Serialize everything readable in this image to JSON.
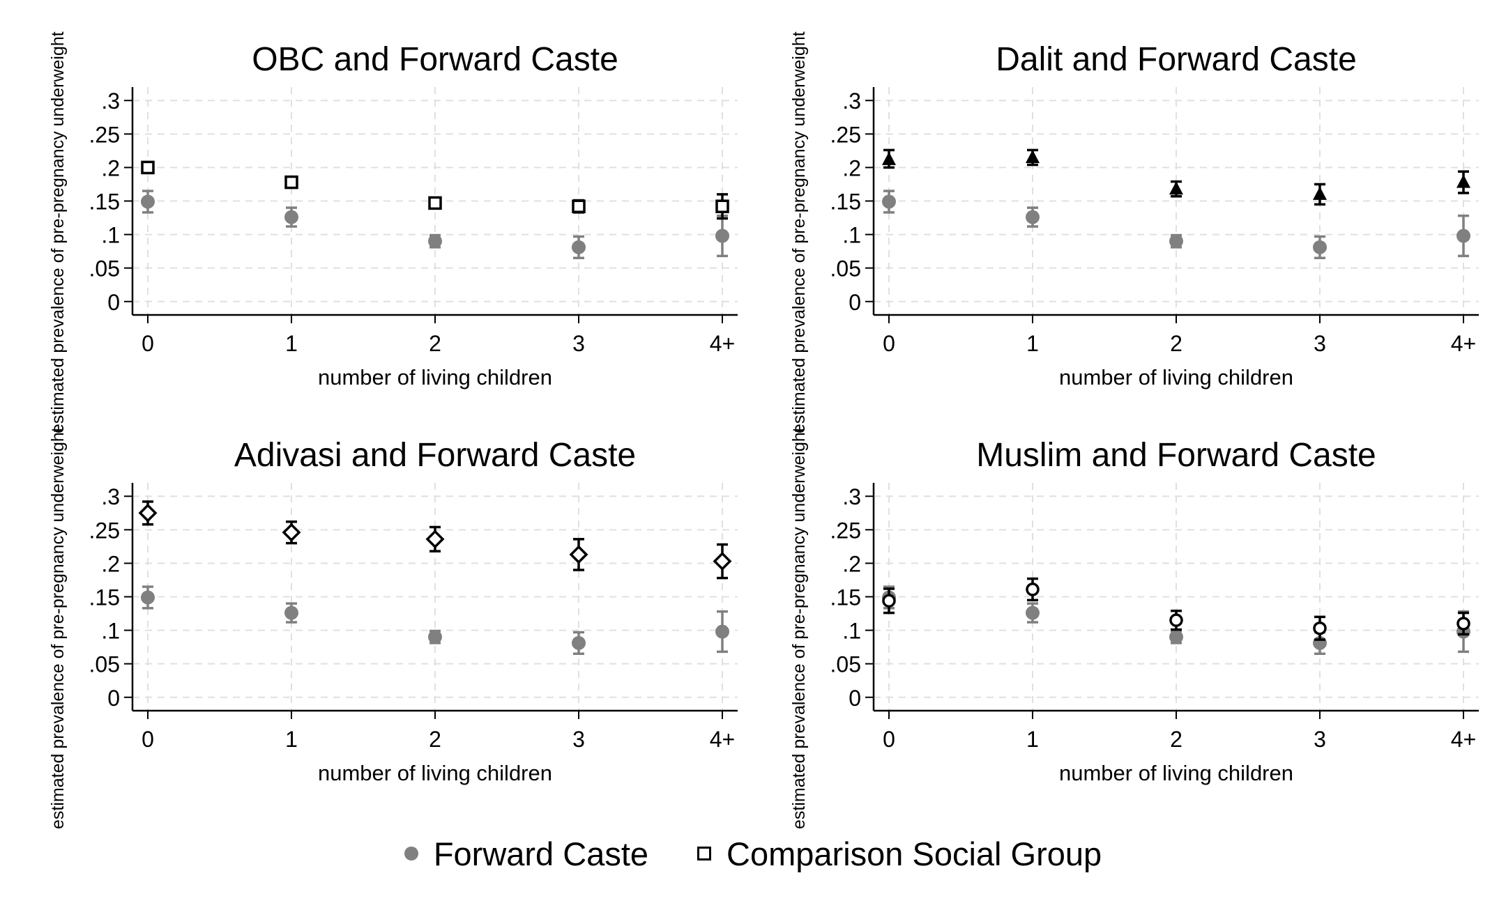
{
  "colors": {
    "forward": "#808080",
    "comparison": "#000000"
  },
  "legend": {
    "items": [
      "Forward Caste",
      "Comparison Social Group"
    ]
  },
  "chart_data": [
    {
      "type": "scatter",
      "title": "OBC and Forward Caste",
      "xlabel": "number of living children",
      "ylabel": "estimated prevalence of pre-pregnancy underweight",
      "categories": [
        "0",
        "1",
        "2",
        "3",
        "4+"
      ],
      "yticks": [
        ".3",
        ".25",
        ".2",
        ".15",
        ".1",
        ".05",
        "0"
      ],
      "ylim": [
        -0.02,
        0.32
      ],
      "grid": true,
      "marker": "square",
      "series": [
        {
          "name": "Forward Caste",
          "values": [
            0.149,
            0.126,
            0.09,
            0.081,
            0.098
          ],
          "lo": [
            0.133,
            0.112,
            0.081,
            0.065,
            0.068
          ],
          "hi": [
            0.165,
            0.14,
            0.099,
            0.097,
            0.128
          ]
        },
        {
          "name": "Comparison Social Group",
          "values": [
            0.2,
            0.178,
            0.147,
            0.142,
            0.142
          ],
          "lo": [
            0.192,
            0.171,
            0.141,
            0.133,
            0.124
          ],
          "hi": [
            0.208,
            0.185,
            0.153,
            0.151,
            0.16
          ]
        }
      ]
    },
    {
      "type": "scatter",
      "title": "Dalit and Forward Caste",
      "xlabel": "number of living children",
      "ylabel": "estimated prevalence of pre-pregnancy underweight",
      "categories": [
        "0",
        "1",
        "2",
        "3",
        "4+"
      ],
      "yticks": [
        ".3",
        ".25",
        ".2",
        ".15",
        ".1",
        ".05",
        "0"
      ],
      "ylim": [
        -0.02,
        0.32
      ],
      "grid": true,
      "marker": "triangle",
      "series": [
        {
          "name": "Forward Caste",
          "values": [
            0.149,
            0.126,
            0.09,
            0.081,
            0.098
          ],
          "lo": [
            0.133,
            0.112,
            0.081,
            0.065,
            0.068
          ],
          "hi": [
            0.165,
            0.14,
            0.099,
            0.097,
            0.128
          ]
        },
        {
          "name": "Comparison Social Group",
          "values": [
            0.212,
            0.215,
            0.168,
            0.16,
            0.178
          ],
          "lo": [
            0.2,
            0.204,
            0.157,
            0.145,
            0.162
          ],
          "hi": [
            0.226,
            0.226,
            0.179,
            0.175,
            0.194
          ]
        }
      ]
    },
    {
      "type": "scatter",
      "title": "Adivasi and Forward Caste",
      "xlabel": "number of living children",
      "ylabel": "estimated prevalence of pre-pregnancy underweight",
      "categories": [
        "0",
        "1",
        "2",
        "3",
        "4+"
      ],
      "yticks": [
        ".3",
        ".25",
        ".2",
        ".15",
        ".1",
        ".05",
        "0"
      ],
      "ylim": [
        -0.02,
        0.32
      ],
      "grid": true,
      "marker": "diamond",
      "series": [
        {
          "name": "Forward Caste",
          "values": [
            0.149,
            0.126,
            0.09,
            0.081,
            0.098
          ],
          "lo": [
            0.133,
            0.112,
            0.081,
            0.065,
            0.068
          ],
          "hi": [
            0.165,
            0.14,
            0.099,
            0.097,
            0.128
          ]
        },
        {
          "name": "Comparison Social Group",
          "values": [
            0.275,
            0.246,
            0.236,
            0.213,
            0.203
          ],
          "lo": [
            0.258,
            0.23,
            0.218,
            0.19,
            0.178
          ],
          "hi": [
            0.292,
            0.262,
            0.254,
            0.236,
            0.228
          ]
        }
      ]
    },
    {
      "type": "scatter",
      "title": "Muslim and Forward Caste",
      "xlabel": "number of living children",
      "ylabel": "estimated prevalence of pre-pregnancy underweight",
      "categories": [
        "0",
        "1",
        "2",
        "3",
        "4+"
      ],
      "yticks": [
        ".3",
        ".25",
        ".2",
        ".15",
        ".1",
        ".05",
        "0"
      ],
      "ylim": [
        -0.02,
        0.32
      ],
      "grid": true,
      "marker": "circle",
      "series": [
        {
          "name": "Forward Caste",
          "values": [
            0.149,
            0.126,
            0.09,
            0.081,
            0.098
          ],
          "lo": [
            0.133,
            0.112,
            0.081,
            0.065,
            0.068
          ],
          "hi": [
            0.165,
            0.14,
            0.099,
            0.097,
            0.128
          ]
        },
        {
          "name": "Comparison Social Group",
          "values": [
            0.144,
            0.161,
            0.115,
            0.103,
            0.11
          ],
          "lo": [
            0.126,
            0.145,
            0.101,
            0.086,
            0.094
          ],
          "hi": [
            0.162,
            0.177,
            0.129,
            0.12,
            0.126
          ]
        }
      ]
    }
  ]
}
